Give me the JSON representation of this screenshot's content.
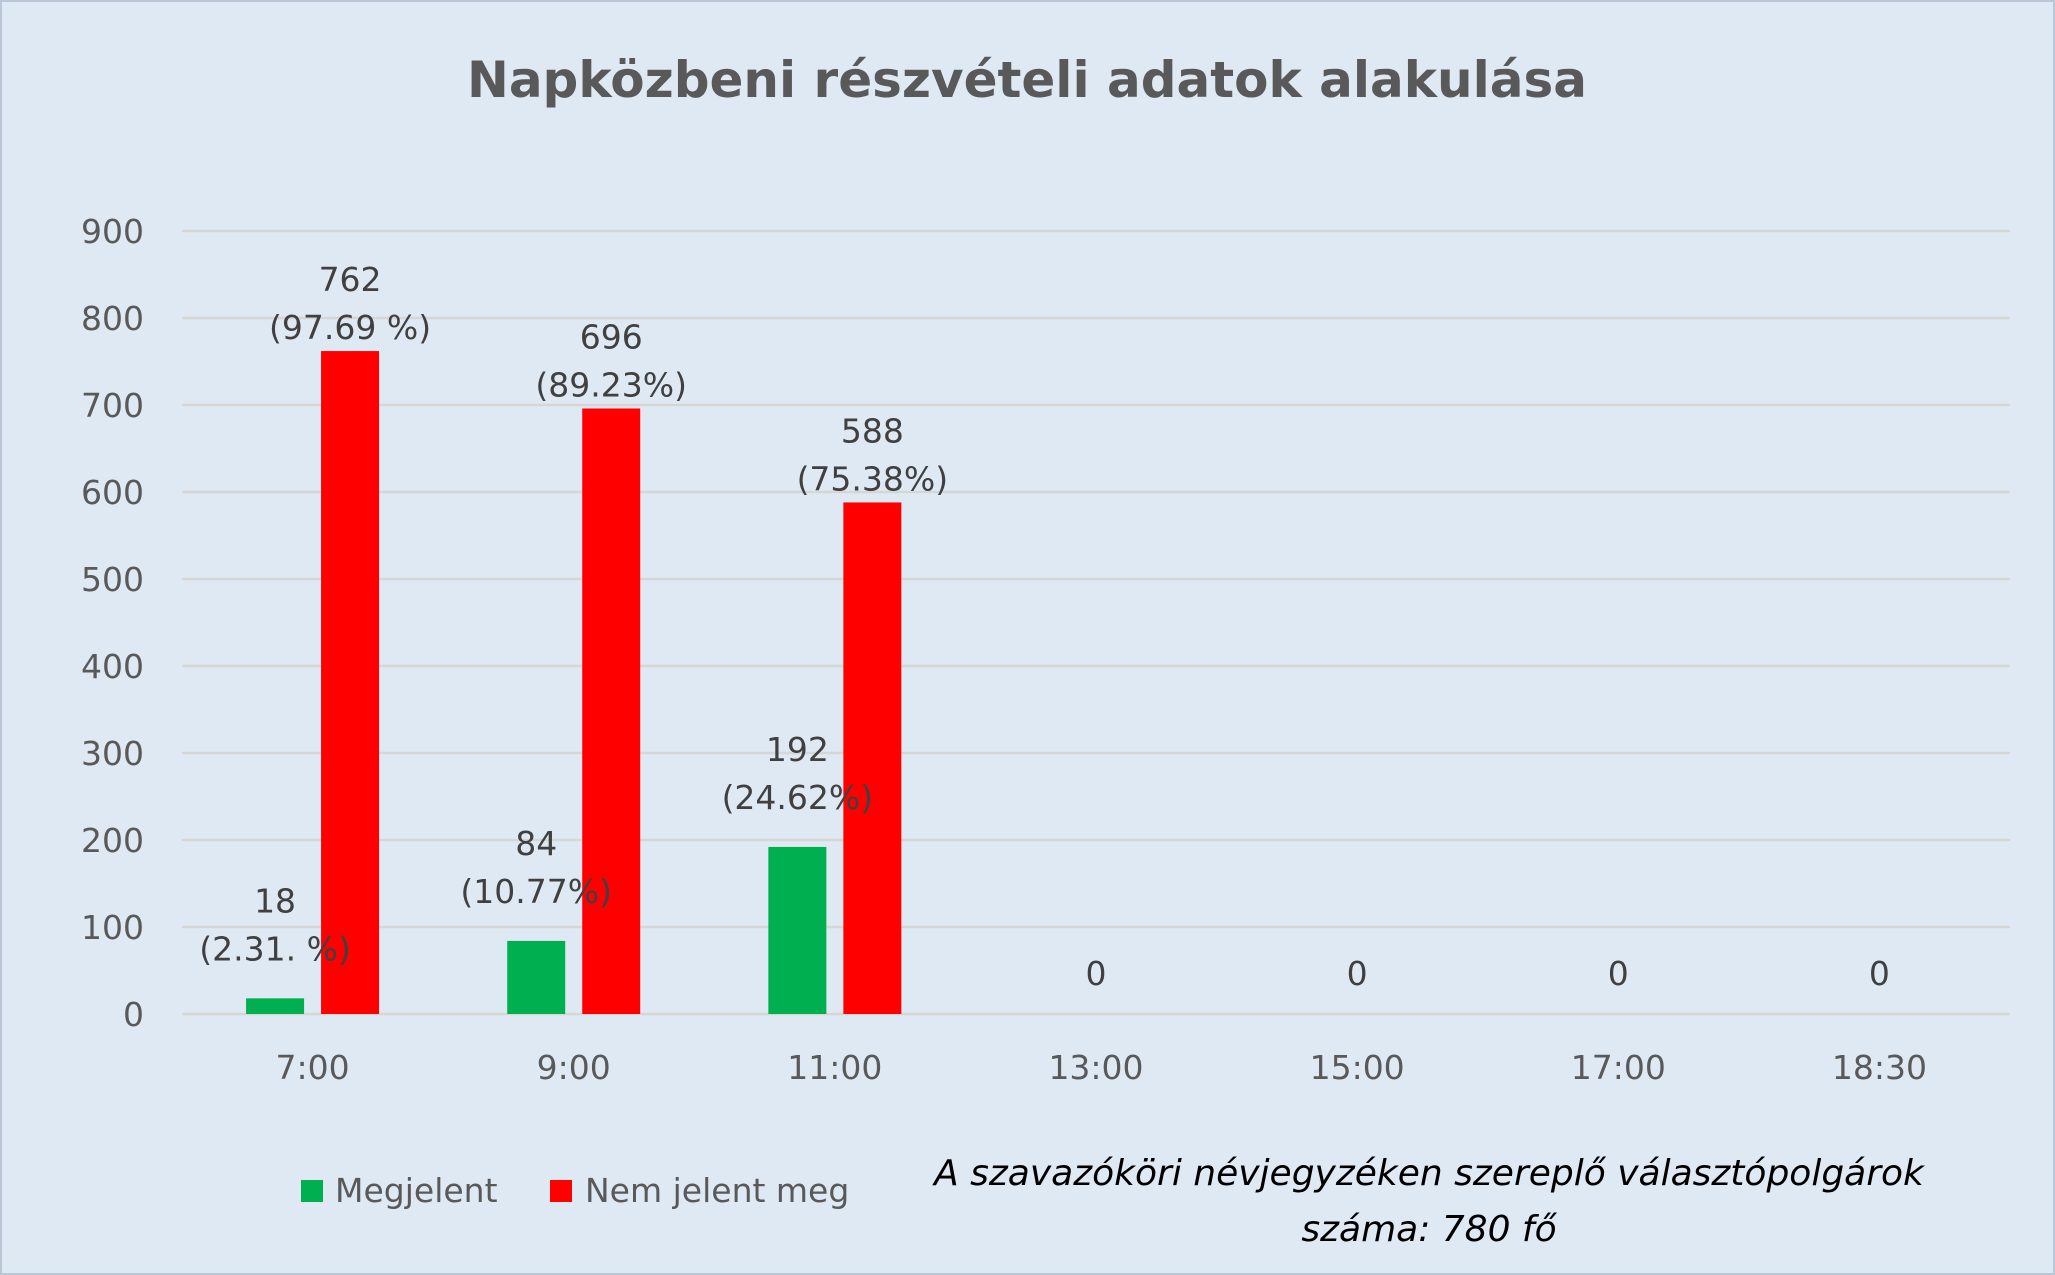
{
  "chart_data": {
    "type": "bar",
    "title": "Napközbeni részvételi adatok alakulása",
    "categories": [
      "7:00",
      "9:00",
      "11:00",
      "13:00",
      "15:00",
      "17:00",
      "18:30"
    ],
    "series": [
      {
        "name": "Megjelent",
        "color": "#00b050",
        "values": [
          18,
          84,
          192,
          0,
          0,
          0,
          0
        ],
        "labels": [
          [
            "18",
            "(2.31. %)"
          ],
          [
            "84",
            "(10.77%)"
          ],
          [
            "192",
            "(24.62%)"
          ],
          [
            "0"
          ],
          [
            "0"
          ],
          [
            "0"
          ],
          [
            "0"
          ]
        ]
      },
      {
        "name": "Nem jelent meg",
        "color": "#ff0000",
        "values": [
          762,
          696,
          588,
          null,
          null,
          null,
          null
        ],
        "labels": [
          [
            "762",
            "(97.69 %)"
          ],
          [
            "696",
            "(89.23%)"
          ],
          [
            "588",
            "(75.38%)"
          ],
          null,
          null,
          null,
          null
        ]
      }
    ],
    "ylim": [
      0,
      900
    ],
    "yticks": [
      0,
      100,
      200,
      300,
      400,
      500,
      600,
      700,
      800,
      900
    ],
    "grid": true,
    "legend_position": "bottom-left",
    "note_lines": [
      "A szavazóköri névjegyzéken szereplő választópolgárok",
      "száma: 780 fő"
    ]
  }
}
